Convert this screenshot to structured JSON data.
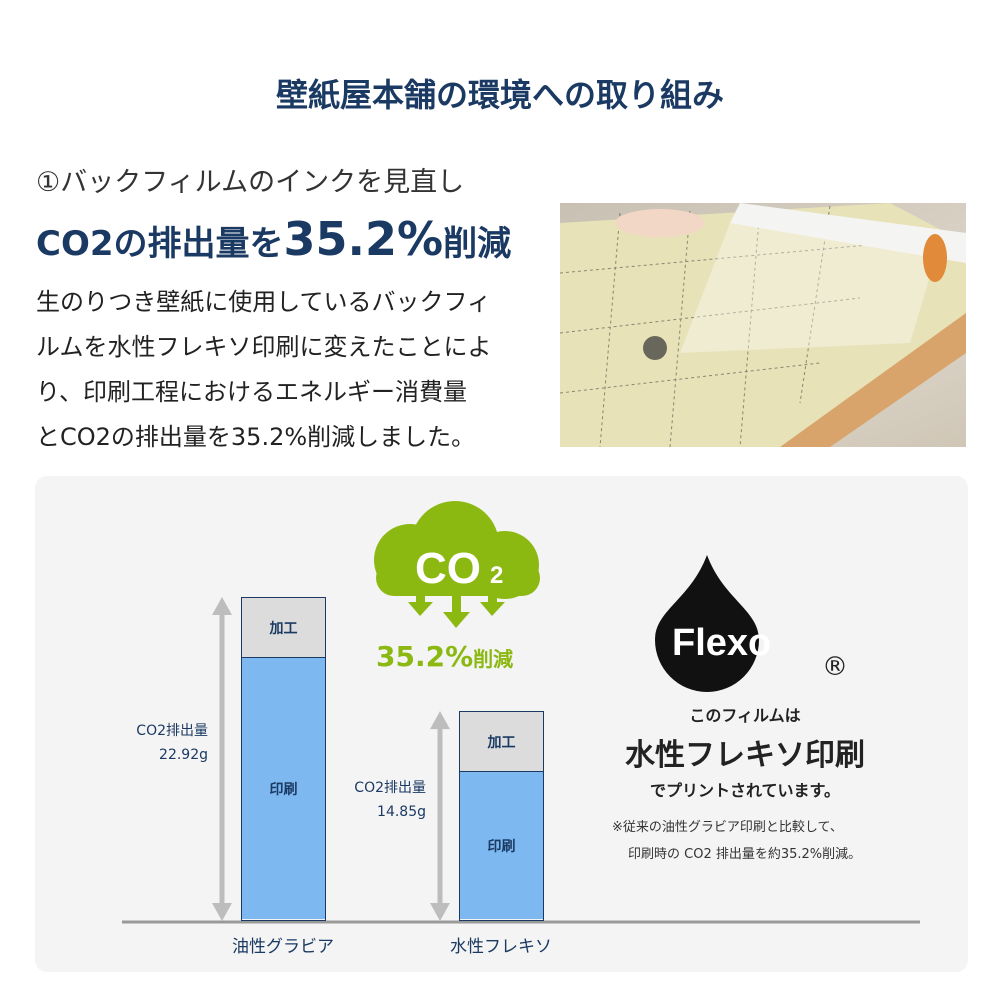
{
  "title": "壁紙屋本舗の環境への取り組み",
  "section": {
    "subtitle": "①バックフィルムのインクを見直し",
    "headline_prefix": "CO2の排出量を",
    "headline_value": "35.2%",
    "headline_suffix": "削減",
    "body_lines": [
      "生のりつき壁紙に使用しているバックフィ",
      "ルムを水性フレキソ印刷に変えたことによ",
      "り、印刷工程におけるエネルギー消費量",
      "とCO2の排出量を35.2%削減しました。"
    ]
  },
  "chart_data": {
    "type": "bar",
    "stacked": true,
    "categories": [
      "油性グラビア",
      "水性フレキソ"
    ],
    "totals": [
      22.92,
      14.85
    ],
    "unit": "g",
    "value_labels": [
      {
        "line1": "CO2排出量",
        "line2": "22.92g"
      },
      {
        "line1": "CO2排出量",
        "line2": "14.85g"
      }
    ],
    "segments": [
      "加工",
      "印刷"
    ],
    "segment_colors": {
      "加工": "#dcdcdc",
      "印刷": "#7db8f0"
    },
    "outline_color": "#1b3a63"
  },
  "reduction": {
    "cloud_text": "CO",
    "cloud_subscript": "2",
    "value": "35.2%",
    "suffix": "削減",
    "color": "#8cb812"
  },
  "flexo": {
    "logo_text": "Flexo",
    "registered": "®",
    "line1": "このフィルムは",
    "line2": "水性フレキソ印刷",
    "line3": "でプリントされています。",
    "note1": "※従来の油性グラビア印刷と比較して、",
    "note2": "印刷時の CO2 排出量を約35.2%削減。"
  }
}
